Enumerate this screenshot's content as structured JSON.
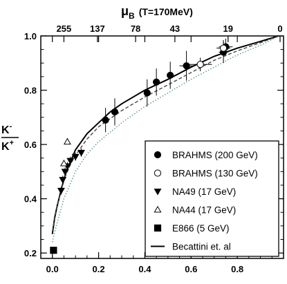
{
  "chart_data": {
    "type": "scatter",
    "title": "",
    "xlabel": "",
    "ylabel_num": "K",
    "ylabel_num_sup": "-",
    "ylabel_den": "K",
    "ylabel_den_sup": "+",
    "top_axis": {
      "symbol": "μ",
      "subscript": "B",
      "condition": "(T=170MeV)",
      "ticks": [
        {
          "label": "255",
          "x": 0.05
        },
        {
          "label": "137",
          "x": 0.195
        },
        {
          "label": "78",
          "x": 0.36
        },
        {
          "label": "43",
          "x": 0.53
        },
        {
          "label": "19",
          "x": 0.76
        },
        {
          "label": "0",
          "x": 0.985
        }
      ]
    },
    "xlim": [
      -0.05,
      1.0
    ],
    "ylim": [
      0.18,
      1.0
    ],
    "x_ticks": [
      {
        "value": 0.0,
        "label": "0.0"
      },
      {
        "value": 0.2,
        "label": "0.2"
      },
      {
        "value": 0.4,
        "label": "0.4"
      },
      {
        "value": 0.6,
        "label": "0.6"
      },
      {
        "value": 0.8,
        "label": "0.8"
      }
    ],
    "y_ticks": [
      {
        "value": 0.2,
        "label": "0.2"
      },
      {
        "value": 0.4,
        "label": "0.4"
      },
      {
        "value": 0.6,
        "label": "0.6"
      },
      {
        "value": 0.8,
        "label": "0.8"
      },
      {
        "value": 1.0,
        "label": "1.0"
      }
    ],
    "grid": false,
    "legend_position": "bottom-right",
    "series": [
      {
        "name": "BRAHMS (200 GeV)",
        "marker": "circle-filled",
        "points": [
          {
            "x": 0.23,
            "y": 0.69,
            "xerr": 0.01,
            "yerr": 0.045
          },
          {
            "x": 0.27,
            "y": 0.72,
            "xerr": 0.015,
            "yerr": 0.05
          },
          {
            "x": 0.41,
            "y": 0.79,
            "xerr": 0.015,
            "yerr": 0.05
          },
          {
            "x": 0.45,
            "y": 0.83,
            "xerr": 0.015,
            "yerr": 0.05
          },
          {
            "x": 0.51,
            "y": 0.855,
            "xerr": 0.015,
            "yerr": 0.05
          },
          {
            "x": 0.58,
            "y": 0.89,
            "xerr": 0.03,
            "yerr": 0.055
          },
          {
            "x": 0.74,
            "y": 0.94,
            "xerr": 0.02,
            "yerr": 0.04
          },
          {
            "x": 0.75,
            "y": 0.96,
            "xerr": 0.03,
            "yerr": 0.03
          }
        ]
      },
      {
        "name": "BRAHMS (130 GeV)",
        "marker": "circle-open",
        "points": [
          {
            "x": 0.64,
            "y": 0.895,
            "xerr": 0.05,
            "yerr": 0.025
          },
          {
            "x": 0.74,
            "y": 0.955,
            "xerr": 0.03,
            "yerr": 0.03
          }
        ]
      },
      {
        "name": "NA49 (17 GeV)",
        "marker": "triangle-down-filled",
        "points": [
          {
            "x": 0.038,
            "y": 0.43,
            "xerr": 0.006,
            "yerr": 0.015
          },
          {
            "x": 0.045,
            "y": 0.47,
            "xerr": 0.006,
            "yerr": 0.015
          },
          {
            "x": 0.055,
            "y": 0.5,
            "xerr": 0.006,
            "yerr": 0.015
          },
          {
            "x": 0.065,
            "y": 0.52,
            "xerr": 0.006,
            "yerr": 0.015
          },
          {
            "x": 0.078,
            "y": 0.54,
            "xerr": 0.008,
            "yerr": 0.015
          },
          {
            "x": 0.1,
            "y": 0.555,
            "xerr": 0.01,
            "yerr": 0.015
          },
          {
            "x": 0.125,
            "y": 0.57,
            "xerr": 0.01,
            "yerr": 0.015
          }
        ]
      },
      {
        "name": "NA44 (17 GeV)",
        "marker": "triangle-up-open",
        "points": [
          {
            "x": 0.05,
            "y": 0.53,
            "xerr": 0.0,
            "yerr": 0.0
          },
          {
            "x": 0.065,
            "y": 0.61,
            "xerr": 0.0,
            "yerr": 0.0
          }
        ]
      },
      {
        "name": "E866 (5 GeV)",
        "marker": "square-filled",
        "points": [
          {
            "x": 0.005,
            "y": 0.21,
            "xerr": 0.0,
            "yerr": 0.0
          }
        ]
      }
    ],
    "curves": [
      {
        "name": "Becattini et. al",
        "style": "solid",
        "color": "#000000",
        "points": [
          [
            0.0,
            0.27
          ],
          [
            0.01,
            0.33
          ],
          [
            0.02,
            0.37
          ],
          [
            0.04,
            0.44
          ],
          [
            0.06,
            0.5
          ],
          [
            0.08,
            0.54
          ],
          [
            0.1,
            0.58
          ],
          [
            0.15,
            0.64
          ],
          [
            0.2,
            0.68
          ],
          [
            0.25,
            0.72
          ],
          [
            0.3,
            0.75
          ],
          [
            0.4,
            0.8
          ],
          [
            0.5,
            0.84
          ],
          [
            0.6,
            0.885
          ],
          [
            0.7,
            0.925
          ],
          [
            0.8,
            0.955
          ],
          [
            0.9,
            0.98
          ],
          [
            0.98,
            1.0
          ]
        ]
      },
      {
        "name": "",
        "style": "dashed",
        "color": "#444444",
        "points": [
          [
            0.0,
            0.28
          ],
          [
            0.02,
            0.37
          ],
          [
            0.05,
            0.47
          ],
          [
            0.08,
            0.53
          ],
          [
            0.1,
            0.56
          ],
          [
            0.15,
            0.62
          ],
          [
            0.2,
            0.665
          ],
          [
            0.3,
            0.725
          ],
          [
            0.4,
            0.775
          ],
          [
            0.5,
            0.82
          ],
          [
            0.6,
            0.865
          ],
          [
            0.7,
            0.91
          ],
          [
            0.8,
            0.945
          ],
          [
            0.9,
            0.975
          ],
          [
            0.98,
            1.0
          ]
        ]
      },
      {
        "name": "",
        "style": "dotted",
        "color": "#5e8f8f",
        "points": [
          [
            0.0,
            0.24
          ],
          [
            0.02,
            0.31
          ],
          [
            0.05,
            0.4
          ],
          [
            0.08,
            0.46
          ],
          [
            0.1,
            0.5
          ],
          [
            0.15,
            0.565
          ],
          [
            0.2,
            0.61
          ],
          [
            0.3,
            0.68
          ],
          [
            0.4,
            0.74
          ],
          [
            0.5,
            0.79
          ],
          [
            0.6,
            0.84
          ],
          [
            0.7,
            0.885
          ],
          [
            0.8,
            0.93
          ],
          [
            0.9,
            0.965
          ],
          [
            0.98,
            1.0
          ]
        ]
      }
    ],
    "legend_entries": [
      {
        "label": "BRAHMS (200 GeV)",
        "marker": "circle-filled"
      },
      {
        "label": "BRAHMS (130 GeV)",
        "marker": "circle-open"
      },
      {
        "label": "NA49 (17 GeV)",
        "marker": "triangle-down-filled"
      },
      {
        "label": "NA44 (17 GeV)",
        "marker": "triangle-up-open"
      },
      {
        "label": "E866 (5 GeV)",
        "marker": "square-filled"
      },
      {
        "label": "Becattini et. al",
        "marker": "line"
      }
    ]
  }
}
